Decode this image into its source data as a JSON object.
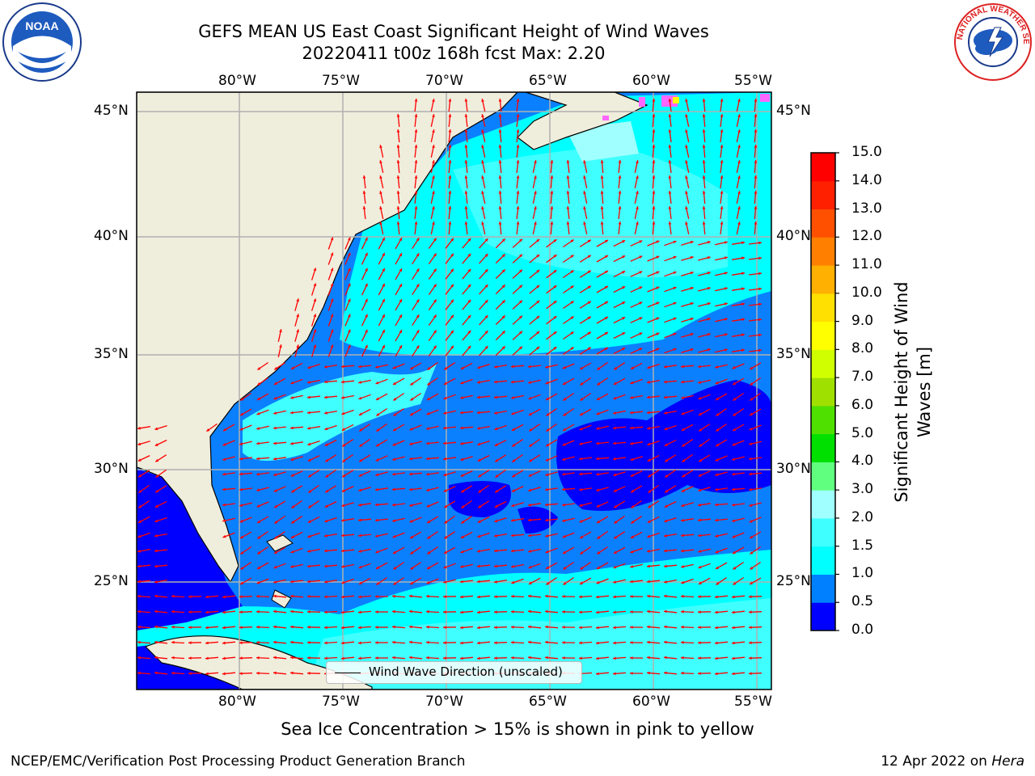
{
  "title": {
    "line1": "GEFS MEAN US East Coast Significant Height of Wind Waves",
    "line2": "20220411 t00z 168h fcst   Max: 2.20"
  },
  "logos": {
    "left": {
      "name": "noaa-logo",
      "text": "NOAA"
    },
    "right": {
      "name": "nws-logo",
      "text": "NATIONAL WEATHER SERVICE"
    }
  },
  "map": {
    "lon_labels": [
      "80°W",
      "75°W",
      "70°W",
      "65°W",
      "60°W",
      "55°W"
    ],
    "lat_labels": [
      "45°N",
      "40°N",
      "35°N",
      "30°N",
      "25°N"
    ],
    "legend_label": "Wind Wave Direction (unscaled)",
    "land_color": "#efeddc",
    "ocean_colors": {
      "0.0-0.5": "#0000ff",
      "0.5-1.0": "#0080ff",
      "1.0-1.5": "#00ffff",
      "1.5-2.0": "#40ffff"
    },
    "arrow_color": "#ff0000"
  },
  "colorbar": {
    "title": "Significant Height of Wind Waves [m]",
    "ticks": [
      "15.0",
      "14.0",
      "13.0",
      "12.0",
      "11.0",
      "10.0",
      "9.0",
      "8.0",
      "7.0",
      "6.0",
      "5.0",
      "4.0",
      "3.0",
      "2.0",
      "1.5",
      "1.0",
      "0.5",
      "0.0"
    ],
    "colors": [
      "#0000ff",
      "#0080ff",
      "#00ffff",
      "#40ffff",
      "#a0ffff",
      "#60ff80",
      "#00e000",
      "#50e000",
      "#a0e000",
      "#d0ff00",
      "#ffff00",
      "#ffe000",
      "#ffb000",
      "#ff8000",
      "#ff5000",
      "#ff2000",
      "#ff0000"
    ]
  },
  "note": "Sea Ice Concentration > 15% is shown in pink to yellow",
  "footer": {
    "left": "NCEP/EMC/Verification Post Processing Product Generation Branch",
    "right_date": "12 Apr 2022 on",
    "right_host": "Hera"
  }
}
